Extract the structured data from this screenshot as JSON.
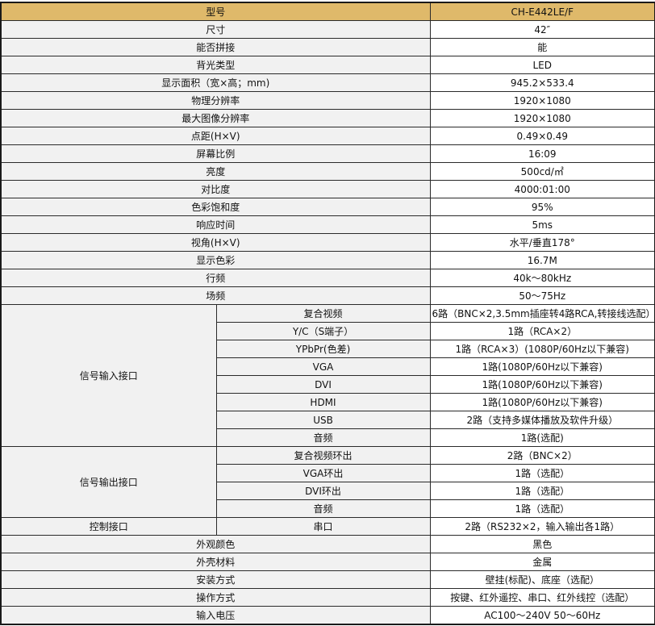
{
  "header": {
    "label": "型号",
    "value": "CH-E442LE/F"
  },
  "colors": {
    "header_bg": "#dfb96a",
    "label_bg": "#f1f1f1",
    "border": "#2a2a2a"
  },
  "simple_rows": [
    {
      "label": "尺寸",
      "value": "42″"
    },
    {
      "label": "能否拼接",
      "value": "能"
    },
    {
      "label": "背光类型",
      "value": "LED"
    },
    {
      "label": "显示面积（宽×高；mm)",
      "value": "945.2×533.4"
    },
    {
      "label": "物理分辨率",
      "value": "1920×1080"
    },
    {
      "label": "最大图像分辨率",
      "value": "1920×1080"
    },
    {
      "label": "点距(H×V)",
      "value": "0.49×0.49"
    },
    {
      "label": "屏幕比例",
      "value": "16:09"
    },
    {
      "label": "亮度",
      "value": "500cd/㎡"
    },
    {
      "label": "对比度",
      "value": "4000:01:00"
    },
    {
      "label": "色彩饱和度",
      "value": "95%"
    },
    {
      "label": "响应时间",
      "value": "5ms"
    },
    {
      "label": "视角(H×V)",
      "value": "水平/垂直178°"
    },
    {
      "label": "显示色彩",
      "value": "16.7M"
    },
    {
      "label": "行频",
      "value": "40k～80kHz"
    },
    {
      "label": "场频",
      "value": "50～75Hz"
    }
  ],
  "groups": [
    {
      "label": "信号输入接口",
      "items": [
        {
          "label": "复合视频",
          "value": "6路（BNC×2,3.5mm插座转4路RCA,转接线选配）"
        },
        {
          "label": "Y/C（S端子）",
          "value": "1路（RCA×2）"
        },
        {
          "label": "YPbPr(色差)",
          "value": "1路（RCA×3）(1080P/60Hz以下兼容)"
        },
        {
          "label": "VGA",
          "value": "1路(1080P/60Hz以下兼容)"
        },
        {
          "label": "DVI",
          "value": "1路(1080P/60Hz以下兼容)"
        },
        {
          "label": "HDMI",
          "value": "1路(1080P/60Hz以下兼容)"
        },
        {
          "label": "USB",
          "value": "2路（支持多媒体播放及软件升级）"
        },
        {
          "label": "音频",
          "value": "1路(选配)"
        }
      ]
    },
    {
      "label": "信号输出接口",
      "items": [
        {
          "label": "复合视频环出",
          "value": "2路（BNC×2）"
        },
        {
          "label": "VGA环出",
          "value": "1路（选配）"
        },
        {
          "label": "DVI环出",
          "value": "1路（选配）"
        },
        {
          "label": "音频",
          "value": "1路（选配）"
        }
      ]
    },
    {
      "label": "控制接口",
      "items": [
        {
          "label": "串口",
          "value": "2路（RS232×2，输入输出各1路）"
        }
      ]
    }
  ],
  "tail_rows": [
    {
      "label": "外观颜色",
      "value": "黑色"
    },
    {
      "label": "外壳材料",
      "value": "金属"
    },
    {
      "label": "安装方式",
      "value": "壁挂(标配)、底座（选配）"
    },
    {
      "label": "操作方式",
      "value": "按键、红外遥控、串口、红外线控（选配）"
    },
    {
      "label": "输入电压",
      "value": "AC100～240V 50～60Hz"
    }
  ]
}
